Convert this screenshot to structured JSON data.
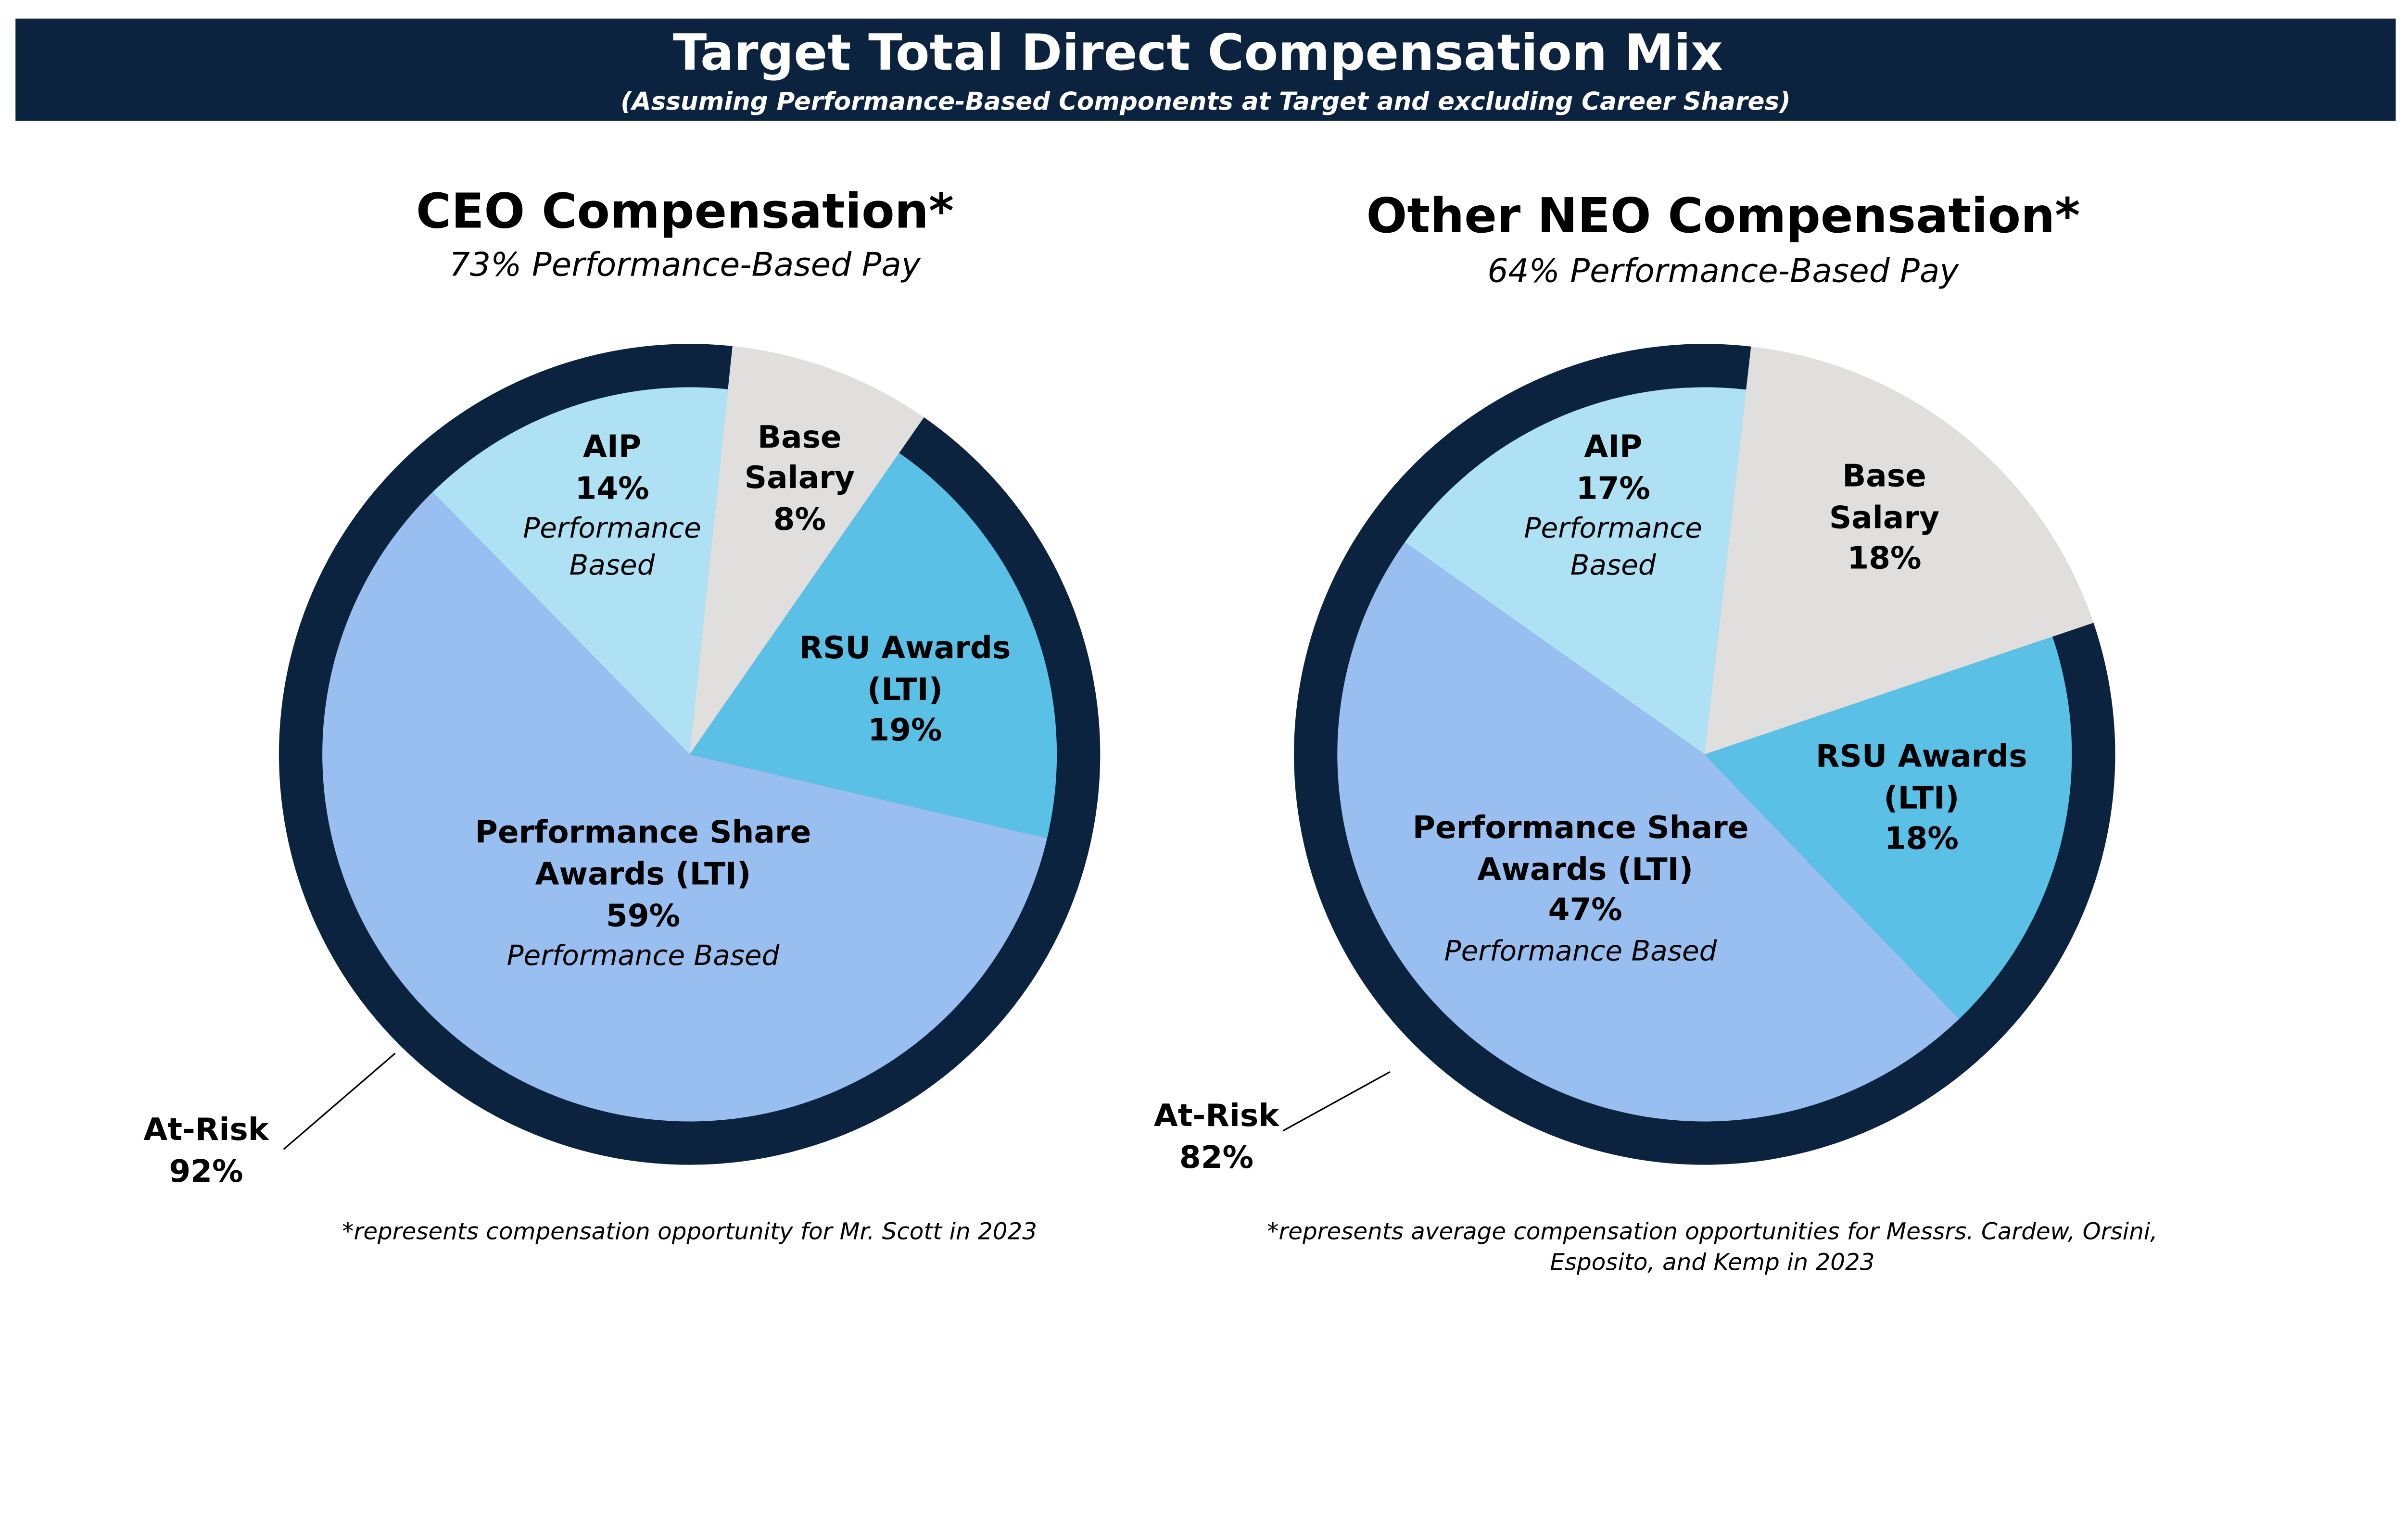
{
  "header": {
    "title": "Target Total Direct Compensation Mix",
    "subtitle": "(Assuming Performance-Based Components at Target and excluding Career Shares)"
  },
  "colors": {
    "navy": "#0c2340",
    "performance_share": "#98bfef",
    "aip": "#aee1f3",
    "base_salary": "#e0dfdd",
    "rsu": "#5bc0e6"
  },
  "chart_data": [
    {
      "type": "pie",
      "title": "CEO Compensation*",
      "subtitle": "73% Performance-Based Pay",
      "slices": [
        {
          "name": "Base Salary",
          "value": 8
        },
        {
          "name": "RSU Awards (LTI)",
          "value": 19
        },
        {
          "name": "Performance Share Awards (LTI)",
          "value": 59,
          "note": "Performance Based"
        },
        {
          "name": "AIP",
          "value": 14,
          "note": "Performance Based"
        }
      ],
      "ring": {
        "label": "At-Risk",
        "value": 92
      },
      "labels": {
        "aip": [
          "AIP",
          "14%",
          "Performance",
          "Based"
        ],
        "base": [
          "Base",
          "Salary",
          "8%"
        ],
        "rsu": [
          "RSU Awards",
          "(LTI)",
          "19%"
        ],
        "psa": [
          "Performance Share",
          "Awards (LTI)",
          "59%",
          "Performance Based"
        ],
        "at_risk": [
          "At-Risk",
          "92%"
        ]
      },
      "footnote": [
        "*represents compensation opportunity for Mr. Scott in 2023"
      ]
    },
    {
      "type": "pie",
      "title": "Other NEO Compensation*",
      "subtitle": "64% Performance-Based Pay",
      "slices": [
        {
          "name": "Base Salary",
          "value": 18
        },
        {
          "name": "RSU Awards (LTI)",
          "value": 18
        },
        {
          "name": "Performance Share Awards (LTI)",
          "value": 47,
          "note": "Performance Based"
        },
        {
          "name": "AIP",
          "value": 17,
          "note": "Performance Based"
        }
      ],
      "ring": {
        "label": "At-Risk",
        "value": 82
      },
      "labels": {
        "aip": [
          "AIP",
          "17%",
          "Performance",
          "Based"
        ],
        "base": [
          "Base",
          "Salary",
          "18%"
        ],
        "rsu": [
          "RSU Awards",
          "(LTI)",
          "18%"
        ],
        "psa": [
          "Performance Share",
          "Awards (LTI)",
          "47%",
          "Performance Based"
        ],
        "at_risk": [
          "At-Risk",
          "82%"
        ]
      },
      "footnote": [
        "*represents average compensation opportunities for Messrs. Cardew, Orsini,",
        "Esposito, and Kemp in 2023"
      ]
    }
  ]
}
